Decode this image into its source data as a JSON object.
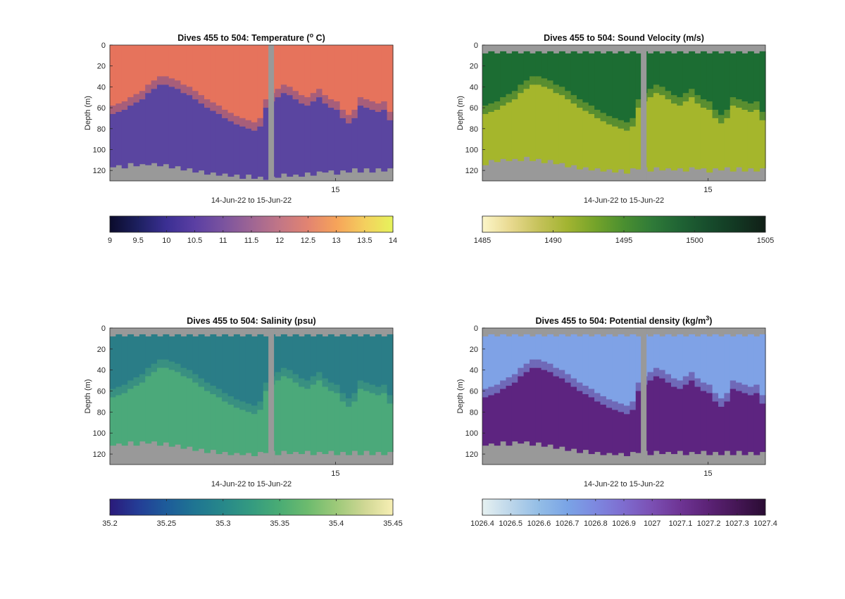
{
  "figure": {
    "background": "#ffffff",
    "missing_color": "#999999"
  },
  "chart_data": [
    {
      "type": "heatmap",
      "title": "Dives 455 to 504: Temperature (",
      "title_super": "o",
      "title_end": " C)",
      "xlabel": "14-Jun-22 to 15-Jun-22",
      "ylabel": "Depth (m)",
      "x_ticks": [
        "15"
      ],
      "x_tick_position": 0.797,
      "y_ticks": [
        "0",
        "20",
        "40",
        "60",
        "80",
        "100",
        "120"
      ],
      "ylim": [
        0,
        130
      ],
      "y_reversed": true,
      "gap_position": 0.57,
      "bottom_depth_profile": [
        117,
        118,
        118,
        116,
        116,
        117,
        115,
        116,
        116,
        117,
        118,
        119,
        120,
        121,
        122,
        123,
        124,
        125,
        125,
        126,
        126,
        127,
        128,
        127,
        128,
        129,
        129,
        129,
        127,
        126,
        126,
        127,
        126,
        125,
        125,
        124,
        122,
        123,
        124,
        123,
        122,
        121,
        122,
        121,
        122,
        121,
        121,
        121
      ],
      "thermocline_depth_profile": [
        66,
        64,
        62,
        58,
        55,
        52,
        46,
        42,
        38,
        38,
        40,
        42,
        46,
        48,
        52,
        56,
        60,
        63,
        66,
        70,
        73,
        76,
        78,
        80,
        82,
        78,
        60,
        54,
        50,
        46,
        48,
        52,
        56,
        58,
        54,
        50,
        56,
        60,
        62,
        70,
        75,
        70,
        58,
        60,
        62,
        64,
        62,
        72
      ],
      "surface_gap": false,
      "colormap": [
        "#0b0b2b",
        "#1d2060",
        "#3b2f93",
        "#5b3fa3",
        "#7a539f",
        "#9e6594",
        "#c27686",
        "#e28471",
        "#f6a35a",
        "#f4cf5e",
        "#e6f35b"
      ],
      "surface_color": "#e6735c",
      "deep_color": "#5a45a0",
      "clim": [
        9,
        14
      ],
      "colorbar_ticks": [
        "9",
        "9.5",
        "10",
        "10.5",
        "11",
        "11.5",
        "12",
        "12.5",
        "13",
        "13.5",
        "14"
      ]
    },
    {
      "type": "heatmap",
      "title": "Dives 455 to 504: Sound Velocity (m/s)",
      "xlabel": "14-Jun-22 to 15-Jun-22",
      "ylabel": "Depth (m)",
      "x_ticks": [
        "15"
      ],
      "x_tick_position": 0.797,
      "y_ticks": [
        "0",
        "20",
        "40",
        "60",
        "80",
        "100",
        "120"
      ],
      "ylim": [
        0,
        130
      ],
      "y_reversed": true,
      "gap_position": 0.57,
      "bottom_depth_profile": [
        115,
        113,
        112,
        112,
        111,
        112,
        111,
        110,
        111,
        112,
        113,
        113,
        114,
        116,
        117,
        118,
        119,
        120,
        120,
        121,
        121,
        122,
        122,
        122,
        123,
        121,
        119,
        120,
        121,
        120,
        120,
        121,
        120,
        121,
        121,
        120,
        119,
        121,
        122,
        121,
        120,
        120,
        121,
        120,
        121,
        121,
        121,
        121
      ],
      "thermocline_depth_profile": [
        66,
        64,
        62,
        58,
        55,
        52,
        46,
        42,
        38,
        38,
        40,
        42,
        46,
        48,
        52,
        56,
        60,
        63,
        66,
        70,
        73,
        76,
        78,
        80,
        82,
        78,
        60,
        54,
        50,
        46,
        48,
        52,
        56,
        58,
        54,
        50,
        56,
        60,
        62,
        70,
        75,
        70,
        58,
        60,
        62,
        64,
        62,
        72
      ],
      "surface_gap": true,
      "colormap": [
        "#fcf6c9",
        "#e8d98f",
        "#c5c25a",
        "#a2b431",
        "#74a32a",
        "#4a8f30",
        "#2f7a38",
        "#1f6334",
        "#174c2c",
        "#123722",
        "#111f17"
      ],
      "surface_color": "#1c6d33",
      "deep_color": "#a5b62c",
      "clim": [
        1485,
        1505
      ],
      "colorbar_ticks": [
        "1485",
        "1490",
        "1495",
        "1500",
        "1505"
      ]
    },
    {
      "type": "heatmap",
      "title": "Dives 455 to 504: Salinity (psu)",
      "xlabel": "14-Jun-22 to 15-Jun-22",
      "ylabel": "Depth (m)",
      "x_ticks": [
        "15"
      ],
      "x_tick_position": 0.797,
      "y_ticks": [
        "0",
        "20",
        "40",
        "60",
        "80",
        "100",
        "120"
      ],
      "ylim": [
        0,
        130
      ],
      "y_reversed": true,
      "gap_position": 0.57,
      "bottom_depth_profile": [
        112,
        113,
        112,
        111,
        112,
        111,
        110,
        111,
        112,
        112,
        113,
        114,
        115,
        116,
        117,
        118,
        119,
        119,
        120,
        121,
        121,
        122,
        121,
        122,
        122,
        121,
        119,
        120,
        121,
        120,
        120,
        121,
        120,
        120,
        121,
        121,
        120,
        120,
        121,
        121,
        121,
        120,
        121,
        120,
        121,
        121,
        121,
        121
      ],
      "thermocline_depth_profile": [
        66,
        64,
        62,
        58,
        55,
        52,
        46,
        42,
        38,
        38,
        40,
        42,
        46,
        48,
        52,
        56,
        60,
        63,
        66,
        70,
        73,
        76,
        78,
        80,
        82,
        78,
        60,
        54,
        50,
        46,
        48,
        52,
        56,
        58,
        54,
        50,
        56,
        60,
        62,
        70,
        75,
        70,
        58,
        60,
        62,
        64,
        62,
        72
      ],
      "surface_gap": true,
      "colormap": [
        "#2a1a7a",
        "#243d96",
        "#1d5c9a",
        "#1f7592",
        "#27888a",
        "#349b80",
        "#4aac74",
        "#6dbb6e",
        "#9dc979",
        "#cfd794",
        "#f7efb4"
      ],
      "surface_color": "#2a7d87",
      "deep_color": "#4ba97a",
      "clim": [
        35.2,
        35.45
      ],
      "colorbar_ticks": [
        "35.2",
        "35.25",
        "35.3",
        "35.35",
        "35.4",
        "35.45"
      ]
    },
    {
      "type": "heatmap",
      "title": "Dives 455 to 504: Potential density (kg/m",
      "title_super": "3",
      "title_end": ")",
      "xlabel": "14-Jun-22 to 15-Jun-22",
      "ylabel": "Depth (m)",
      "x_ticks": [
        "15"
      ],
      "x_tick_position": 0.797,
      "y_ticks": [
        "0",
        "20",
        "40",
        "60",
        "80",
        "100",
        "120"
      ],
      "ylim": [
        0,
        130
      ],
      "y_reversed": true,
      "gap_position": 0.57,
      "bottom_depth_profile": [
        112,
        113,
        112,
        111,
        112,
        111,
        110,
        111,
        112,
        112,
        113,
        114,
        115,
        116,
        117,
        118,
        119,
        119,
        120,
        121,
        121,
        122,
        121,
        122,
        122,
        121,
        119,
        120,
        121,
        120,
        120,
        121,
        120,
        120,
        121,
        121,
        120,
        120,
        121,
        121,
        121,
        120,
        121,
        120,
        121,
        121,
        121,
        121
      ],
      "thermocline_depth_profile": [
        66,
        64,
        62,
        58,
        55,
        52,
        46,
        42,
        38,
        38,
        40,
        42,
        46,
        48,
        52,
        56,
        60,
        63,
        66,
        70,
        73,
        76,
        78,
        80,
        82,
        78,
        60,
        54,
        50,
        46,
        48,
        52,
        56,
        58,
        54,
        50,
        56,
        60,
        62,
        70,
        75,
        70,
        58,
        60,
        62,
        64,
        62,
        72
      ],
      "surface_gap": true,
      "colormap": [
        "#e6f1f1",
        "#bcd6ea",
        "#93bde6",
        "#7aa4e6",
        "#7d88e0",
        "#7e6ccf",
        "#7b4fb3",
        "#6e3494",
        "#5b2275",
        "#451655",
        "#2a0c33"
      ],
      "surface_color": "#7fa2e6",
      "deep_color": "#5d2480",
      "clim": [
        1026.4,
        1027.4
      ],
      "colorbar_ticks": [
        "1026.4",
        "1026.5",
        "1026.6",
        "1026.7",
        "1026.8",
        "1026.9",
        "1027",
        "1027.1",
        "1027.2",
        "1027.3",
        "1027.4"
      ]
    }
  ]
}
